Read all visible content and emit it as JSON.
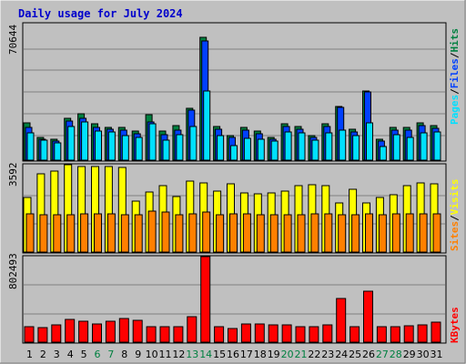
{
  "title": "Daily usage for July 2024",
  "colors": {
    "background": "#c0c0c0",
    "title": "#0000cc",
    "hits": "#008040",
    "files": "#0040ff",
    "pages": "#00e0ff",
    "visits": "#ffff00",
    "sites": "#ff8000",
    "kbytes": "#ff0000",
    "weekend_label": "#008040",
    "weekday_label": "#000000"
  },
  "chart_data": [
    {
      "type": "bar",
      "panel": "top",
      "ytick_label": "70644",
      "ytick_value": 70644,
      "ylim": [
        0,
        78500
      ],
      "legend": [
        "Pages",
        "Files",
        "Hits"
      ],
      "x": [
        "1",
        "2",
        "3",
        "4",
        "5",
        "6",
        "7",
        "8",
        "9",
        "10",
        "11",
        "12",
        "13",
        "14",
        "15",
        "16",
        "17",
        "18",
        "19",
        "20",
        "21",
        "22",
        "23",
        "24",
        "25",
        "26",
        "27",
        "28",
        "29",
        "30",
        "31"
      ],
      "series": [
        {
          "name": "Hits",
          "values": [
            21400,
            13000,
            12000,
            24000,
            26500,
            20800,
            19100,
            19000,
            16500,
            26000,
            16500,
            19800,
            30000,
            70644,
            19300,
            14200,
            18700,
            16800,
            13200,
            21000,
            19400,
            14300,
            20800,
            31000,
            17600,
            40000,
            12000,
            18700,
            18700,
            21400,
            19800
          ]
        },
        {
          "name": "Files",
          "values": [
            19000,
            12000,
            11000,
            22500,
            24100,
            18700,
            17600,
            17300,
            15100,
            22000,
            14600,
            17300,
            29000,
            68600,
            17800,
            13000,
            17100,
            15100,
            12200,
            19300,
            17900,
            13200,
            19300,
            30600,
            16000,
            39000,
            10900,
            17200,
            17100,
            19800,
            18200
          ]
        },
        {
          "name": "Pages",
          "values": [
            15800,
            11600,
            9800,
            19600,
            21900,
            17000,
            16000,
            14200,
            13200,
            20800,
            11700,
            14600,
            19300,
            40000,
            14200,
            8200,
            12500,
            12100,
            10800,
            16000,
            15500,
            11700,
            15500,
            17100,
            14200,
            21400,
            7600,
            14600,
            13200,
            15800,
            16400
          ]
        }
      ]
    },
    {
      "type": "bar",
      "panel": "middle",
      "ytick_label": "3592",
      "ytick_value": 3592,
      "ylim": [
        0,
        4250
      ],
      "legend": [
        "Sites",
        "Visits"
      ],
      "x": [
        "1",
        "2",
        "3",
        "4",
        "5",
        "6",
        "7",
        "8",
        "9",
        "10",
        "11",
        "12",
        "13",
        "14",
        "15",
        "16",
        "17",
        "18",
        "19",
        "20",
        "21",
        "22",
        "23",
        "24",
        "25",
        "26",
        "27",
        "28",
        "29",
        "30",
        "31"
      ],
      "series": [
        {
          "name": "Visits",
          "values": [
            2640,
            3800,
            3960,
            4230,
            4140,
            4140,
            4140,
            4100,
            2500,
            2920,
            3250,
            2720,
            3460,
            3380,
            2950,
            3310,
            2870,
            2850,
            2880,
            2950,
            3250,
            3270,
            3250,
            2380,
            3060,
            2380,
            2660,
            2810,
            3250,
            3380,
            3300
          ]
        },
        {
          "name": "Sites",
          "values": [
            1870,
            1820,
            1820,
            1800,
            1870,
            1870,
            1850,
            1800,
            1810,
            1990,
            1960,
            1820,
            1850,
            1960,
            1820,
            1850,
            1850,
            1820,
            1820,
            1800,
            1820,
            1840,
            1860,
            1810,
            1830,
            1840,
            1820,
            1850,
            1850,
            1840,
            1860
          ]
        }
      ]
    },
    {
      "type": "bar",
      "panel": "bottom",
      "ytick_label": "802493",
      "ytick_value": 802493,
      "ylim": [
        0,
        925000
      ],
      "legend": [
        "KBytes"
      ],
      "x": [
        "1",
        "2",
        "3",
        "4",
        "5",
        "6",
        "7",
        "8",
        "9",
        "10",
        "11",
        "12",
        "13",
        "14",
        "15",
        "16",
        "17",
        "18",
        "19",
        "20",
        "21",
        "22",
        "23",
        "24",
        "25",
        "26",
        "27",
        "28",
        "29",
        "30",
        "31"
      ],
      "series": [
        {
          "name": "KBytes",
          "values": [
            170000,
            155000,
            190000,
            250000,
            230000,
            200000,
            225000,
            260000,
            240000,
            170000,
            170000,
            170000,
            275000,
            925000,
            170000,
            150000,
            200000,
            200000,
            190000,
            190000,
            170000,
            165000,
            190000,
            470000,
            165000,
            550000,
            170000,
            170000,
            180000,
            190000,
            220000
          ]
        }
      ]
    }
  ],
  "x_labels": [
    "1",
    "2",
    "3",
    "4",
    "5",
    "6",
    "7",
    "8",
    "9",
    "10",
    "11",
    "12",
    "13",
    "14",
    "15",
    "16",
    "17",
    "18",
    "19",
    "20",
    "21",
    "22",
    "23",
    "24",
    "25",
    "26",
    "27",
    "28",
    "29",
    "30",
    "31"
  ],
  "weekend_days": [
    "6",
    "7",
    "13",
    "14",
    "20",
    "21",
    "27",
    "28"
  ]
}
